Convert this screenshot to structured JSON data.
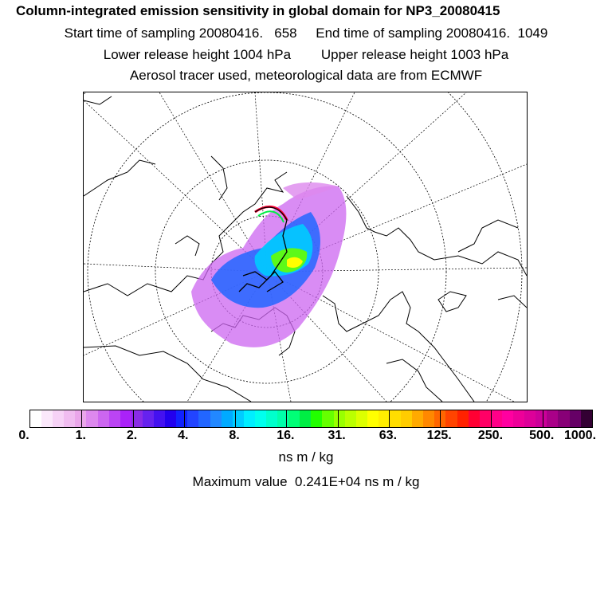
{
  "header": {
    "title": "Column-integrated emission sensitivity in global domain for NP3_20080415",
    "sampling_times": "Start time of sampling 20080416.   658     End time of sampling 20080416.  1049",
    "release_heights": "Lower release height 1004 hPa        Upper release height 1003 hPa",
    "tracer_info": "Aerosol tracer used, meteorological data are from ECMWF"
  },
  "map": {
    "projection": "polar-stereographic",
    "features": [
      "coastlines",
      "latitude-circles",
      "meridians",
      "emission-sensitivity-plume",
      "flight-track"
    ]
  },
  "legend": {
    "tick_labels": [
      "0.",
      "1.",
      "2.",
      "4.",
      "8.",
      "16.",
      "31.",
      "63.",
      "125.",
      "250.",
      "500.",
      "1000."
    ],
    "colors": [
      "#ffffff",
      "#fbe8fb",
      "#f6d2f6",
      "#f0bcf0",
      "#eaa6ea",
      "#dd88ee",
      "#cc66f0",
      "#bb44f4",
      "#aa22f8",
      "#8a2be6",
      "#6622ee",
      "#4411f0",
      "#2200ee",
      "#1122ff",
      "#2244ff",
      "#2266ff",
      "#2288ff",
      "#00aaff",
      "#00ccff",
      "#00eeff",
      "#00ffee",
      "#00ffcc",
      "#00ffaa",
      "#00ff77",
      "#00ee44",
      "#22ff00",
      "#66ff00",
      "#99ff00",
      "#bbff00",
      "#ddff00",
      "#ffff00",
      "#ffee00",
      "#ffdd00",
      "#ffcc00",
      "#ffaa00",
      "#ff8800",
      "#ff6600",
      "#ff4400",
      "#ff2200",
      "#ff0033",
      "#ff0066",
      "#ff0088",
      "#ff00a0",
      "#ee0099",
      "#dd0099",
      "#cc0099",
      "#aa0088",
      "#880077",
      "#660066",
      "#330033"
    ],
    "unit": "ns m / kg",
    "max_value_text": "Maximum value  0.241E+04 ns m / kg"
  }
}
